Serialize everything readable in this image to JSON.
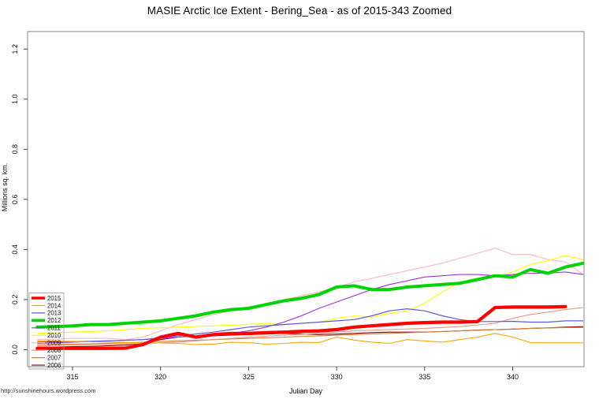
{
  "page": {
    "title": "MASIE Arctic Ice Extent - Bering_Sea - as of 2015-343 Zoomed",
    "footer_url": "http://sunshinehours.wordpress.com"
  },
  "chart_data": {
    "type": "line",
    "title": "MASIE Arctic Ice Extent - Bering_Sea - as of 2015-343 Zoomed",
    "xlabel": "Julian Day",
    "ylabel": "Millions sq. km.",
    "x_ticks": [
      315,
      320,
      325,
      330,
      335,
      340
    ],
    "y_ticks": [
      "0.0",
      "0.2",
      "0.4",
      "0.6",
      "0.8",
      "1.0",
      "1.2"
    ],
    "xlim": [
      312.45,
      344.05
    ],
    "ylim": [
      -0.068,
      1.27
    ],
    "grid": false,
    "legend_position": "bottom-left",
    "axis_color": "#888888",
    "tick_text_color": "#111111",
    "series": [
      {
        "name": "2006",
        "color": "#8B0000",
        "width": 1.1,
        "points": [
          [
            313,
            0.01
          ],
          [
            314,
            0.01
          ],
          [
            315,
            0.012
          ],
          [
            316,
            0.013
          ],
          [
            317,
            0.015
          ],
          [
            318,
            0.018
          ],
          [
            319,
            0.025
          ],
          [
            320,
            0.04
          ],
          [
            321,
            0.05
          ],
          [
            322,
            0.055
          ],
          [
            323,
            0.055
          ],
          [
            324,
            0.058
          ],
          [
            325,
            0.06
          ],
          [
            326,
            0.062
          ],
          [
            327,
            0.065
          ],
          [
            328,
            0.063
          ],
          [
            329,
            0.06
          ],
          [
            330,
            0.062
          ],
          [
            331,
            0.065
          ],
          [
            332,
            0.068
          ],
          [
            333,
            0.07
          ],
          [
            334,
            0.07
          ],
          [
            335,
            0.07
          ],
          [
            336,
            0.072
          ],
          [
            337,
            0.075
          ],
          [
            338,
            0.078
          ],
          [
            339,
            0.08
          ],
          [
            340,
            0.082
          ],
          [
            341,
            0.085
          ],
          [
            342,
            0.087
          ],
          [
            343,
            0.09
          ],
          [
            344,
            0.092
          ]
        ]
      },
      {
        "name": "2007",
        "color": "#CD853F",
        "width": 1.1,
        "points": [
          [
            313,
            0.02
          ],
          [
            315,
            0.022
          ],
          [
            317,
            0.025
          ],
          [
            319,
            0.03
          ],
          [
            321,
            0.035
          ],
          [
            323,
            0.04
          ],
          [
            325,
            0.045
          ],
          [
            327,
            0.05
          ],
          [
            329,
            0.055
          ],
          [
            331,
            0.06
          ],
          [
            333,
            0.065
          ],
          [
            335,
            0.07
          ],
          [
            337,
            0.075
          ],
          [
            339,
            0.08
          ],
          [
            341,
            0.085
          ],
          [
            343,
            0.088
          ],
          [
            344,
            0.088
          ]
        ]
      },
      {
        "name": "2008",
        "color": "#E9967A",
        "width": 1.1,
        "points": [
          [
            313,
            0.015
          ],
          [
            315,
            0.018
          ],
          [
            317,
            0.02
          ],
          [
            319,
            0.025
          ],
          [
            321,
            0.03
          ],
          [
            323,
            0.04
          ],
          [
            325,
            0.05
          ],
          [
            327,
            0.058
          ],
          [
            329,
            0.065
          ],
          [
            331,
            0.075
          ],
          [
            333,
            0.08
          ],
          [
            335,
            0.085
          ],
          [
            337,
            0.092
          ],
          [
            339,
            0.105
          ],
          [
            340,
            0.125
          ],
          [
            341,
            0.14
          ],
          [
            342,
            0.15
          ],
          [
            343,
            0.16
          ],
          [
            344,
            0.168
          ]
        ]
      },
      {
        "name": "2009",
        "color": "#FFB6C1",
        "width": 1.1,
        "points": [
          [
            313,
            0.04
          ],
          [
            314,
            0.042
          ],
          [
            315,
            0.045
          ],
          [
            316,
            0.045
          ],
          [
            317,
            0.045
          ],
          [
            318,
            0.04
          ],
          [
            319,
            0.05
          ],
          [
            320,
            0.075
          ],
          [
            321,
            0.1
          ],
          [
            322,
            0.12
          ],
          [
            323,
            0.14
          ],
          [
            324,
            0.155
          ],
          [
            325,
            0.165
          ],
          [
            326,
            0.18
          ],
          [
            327,
            0.2
          ],
          [
            328,
            0.215
          ],
          [
            329,
            0.23
          ],
          [
            330,
            0.25
          ],
          [
            331,
            0.27
          ],
          [
            332,
            0.285
          ],
          [
            333,
            0.3
          ],
          [
            334,
            0.315
          ],
          [
            335,
            0.33
          ],
          [
            336,
            0.345
          ],
          [
            337,
            0.365
          ],
          [
            338,
            0.385
          ],
          [
            339,
            0.405
          ],
          [
            340,
            0.38
          ],
          [
            341,
            0.38
          ],
          [
            342,
            0.36
          ],
          [
            343,
            0.35
          ],
          [
            344,
            0.3
          ]
        ]
      },
      {
        "name": "2010",
        "color": "#FFFF00",
        "width": 1.1,
        "points": [
          [
            313,
            0.065
          ],
          [
            315,
            0.07
          ],
          [
            317,
            0.075
          ],
          [
            319,
            0.085
          ],
          [
            321,
            0.09
          ],
          [
            323,
            0.095
          ],
          [
            325,
            0.1
          ],
          [
            326,
            0.105
          ],
          [
            327,
            0.1
          ],
          [
            328,
            0.105
          ],
          [
            329,
            0.11
          ],
          [
            330,
            0.125
          ],
          [
            331,
            0.135
          ],
          [
            332,
            0.13
          ],
          [
            333,
            0.145
          ],
          [
            334,
            0.155
          ],
          [
            335,
            0.185
          ],
          [
            336,
            0.23
          ],
          [
            337,
            0.27
          ],
          [
            338,
            0.285
          ],
          [
            339,
            0.29
          ],
          [
            340,
            0.31
          ],
          [
            341,
            0.34
          ],
          [
            342,
            0.355
          ],
          [
            343,
            0.375
          ],
          [
            344,
            0.36
          ]
        ]
      },
      {
        "name": "2011",
        "color": "#A030E0",
        "width": 1.1,
        "points": [
          [
            313,
            0.025
          ],
          [
            315,
            0.03
          ],
          [
            317,
            0.035
          ],
          [
            319,
            0.04
          ],
          [
            321,
            0.05
          ],
          [
            323,
            0.058
          ],
          [
            324,
            0.065
          ],
          [
            325,
            0.075
          ],
          [
            326,
            0.09
          ],
          [
            327,
            0.11
          ],
          [
            328,
            0.135
          ],
          [
            329,
            0.165
          ],
          [
            330,
            0.19
          ],
          [
            331,
            0.215
          ],
          [
            332,
            0.24
          ],
          [
            333,
            0.26
          ],
          [
            334,
            0.275
          ],
          [
            335,
            0.29
          ],
          [
            336,
            0.295
          ],
          [
            337,
            0.3
          ],
          [
            338,
            0.3
          ],
          [
            339,
            0.295
          ],
          [
            340,
            0.3
          ],
          [
            341,
            0.305
          ],
          [
            342,
            0.305
          ],
          [
            343,
            0.31
          ],
          [
            344,
            0.3
          ]
        ]
      },
      {
        "name": "2012",
        "color": "#00D400",
        "width": 4,
        "points": [
          [
            313,
            0.09
          ],
          [
            314,
            0.092
          ],
          [
            315,
            0.095
          ],
          [
            316,
            0.1
          ],
          [
            317,
            0.1
          ],
          [
            318,
            0.105
          ],
          [
            319,
            0.11
          ],
          [
            320,
            0.115
          ],
          [
            321,
            0.125
          ],
          [
            322,
            0.135
          ],
          [
            323,
            0.15
          ],
          [
            324,
            0.16
          ],
          [
            325,
            0.165
          ],
          [
            326,
            0.18
          ],
          [
            327,
            0.195
          ],
          [
            328,
            0.205
          ],
          [
            329,
            0.22
          ],
          [
            330,
            0.25
          ],
          [
            331,
            0.255
          ],
          [
            332,
            0.24
          ],
          [
            333,
            0.24
          ],
          [
            334,
            0.25
          ],
          [
            335,
            0.255
          ],
          [
            336,
            0.26
          ],
          [
            337,
            0.265
          ],
          [
            338,
            0.28
          ],
          [
            339,
            0.295
          ],
          [
            340,
            0.29
          ],
          [
            341,
            0.32
          ],
          [
            342,
            0.305
          ],
          [
            343,
            0.33
          ],
          [
            344,
            0.345
          ]
        ]
      },
      {
        "name": "2013",
        "color": "#5B5BE0",
        "width": 1.2,
        "points": [
          [
            313,
            0.03
          ],
          [
            315,
            0.032
          ],
          [
            317,
            0.035
          ],
          [
            319,
            0.04
          ],
          [
            321,
            0.055
          ],
          [
            323,
            0.07
          ],
          [
            324,
            0.08
          ],
          [
            325,
            0.09
          ],
          [
            326,
            0.095
          ],
          [
            327,
            0.1
          ],
          [
            328,
            0.105
          ],
          [
            329,
            0.11
          ],
          [
            330,
            0.115
          ],
          [
            331,
            0.12
          ],
          [
            332,
            0.135
          ],
          [
            333,
            0.155
          ],
          [
            334,
            0.163
          ],
          [
            335,
            0.155
          ],
          [
            336,
            0.135
          ],
          [
            337,
            0.12
          ],
          [
            338,
            0.112
          ],
          [
            339,
            0.112
          ],
          [
            340,
            0.113
          ],
          [
            341,
            0.11
          ],
          [
            342,
            0.11
          ],
          [
            343,
            0.115
          ],
          [
            344,
            0.115
          ]
        ]
      },
      {
        "name": "2014",
        "color": "#FFA500",
        "width": 1.1,
        "points": [
          [
            313,
            0.035
          ],
          [
            315,
            0.033
          ],
          [
            317,
            0.03
          ],
          [
            319,
            0.028
          ],
          [
            321,
            0.025
          ],
          [
            322,
            0.02
          ],
          [
            323,
            0.022
          ],
          [
            324,
            0.03
          ],
          [
            325,
            0.028
          ],
          [
            326,
            0.022
          ],
          [
            327,
            0.025
          ],
          [
            328,
            0.03
          ],
          [
            329,
            0.028
          ],
          [
            330,
            0.05
          ],
          [
            331,
            0.038
          ],
          [
            332,
            0.03
          ],
          [
            333,
            0.025
          ],
          [
            334,
            0.04
          ],
          [
            335,
            0.035
          ],
          [
            336,
            0.03
          ],
          [
            337,
            0.04
          ],
          [
            338,
            0.05
          ],
          [
            339,
            0.065
          ],
          [
            340,
            0.05
          ],
          [
            341,
            0.028
          ],
          [
            342,
            0.027
          ],
          [
            343,
            0.027
          ],
          [
            344,
            0.027
          ]
        ]
      },
      {
        "name": "2015",
        "color": "#FF0000",
        "width": 4.2,
        "points": [
          [
            313,
            0.005
          ],
          [
            314,
            0.005
          ],
          [
            315,
            0.005
          ],
          [
            316,
            0.005
          ],
          [
            317,
            0.005
          ],
          [
            318,
            0.006
          ],
          [
            319,
            0.02
          ],
          [
            320,
            0.05
          ],
          [
            321,
            0.065
          ],
          [
            322,
            0.05
          ],
          [
            323,
            0.06
          ],
          [
            324,
            0.065
          ],
          [
            325,
            0.065
          ],
          [
            326,
            0.068
          ],
          [
            327,
            0.07
          ],
          [
            328,
            0.073
          ],
          [
            329,
            0.075
          ],
          [
            330,
            0.08
          ],
          [
            331,
            0.09
          ],
          [
            332,
            0.095
          ],
          [
            333,
            0.1
          ],
          [
            334,
            0.105
          ],
          [
            335,
            0.108
          ],
          [
            336,
            0.11
          ],
          [
            337,
            0.11
          ],
          [
            338,
            0.112
          ],
          [
            339,
            0.168
          ],
          [
            340,
            0.17
          ],
          [
            341,
            0.17
          ],
          [
            342,
            0.17
          ],
          [
            343,
            0.172
          ]
        ]
      }
    ]
  }
}
